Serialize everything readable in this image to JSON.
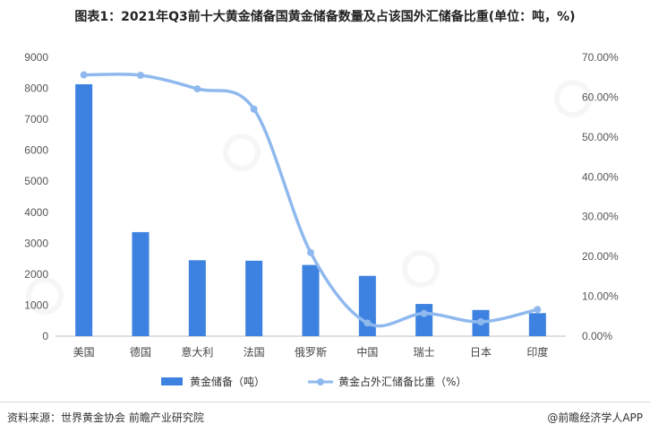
{
  "title": "图表1：2021年Q3前十大黄金储备国黄金储备数量及占该国外汇储备比重(单位：吨，%)",
  "source": "资料来源：世界黄金协会 前瞻产业研究院",
  "credit": "@前瞻经济学人APP",
  "colors": {
    "bar": "#3d82e0",
    "line": "#8fb9ee",
    "grid": "#e6e6e6"
  },
  "chart_data": {
    "type": "bar",
    "categories": [
      "美国",
      "德国",
      "意大利",
      "法国",
      "俄罗斯",
      "中国",
      "瑞士",
      "日本",
      "印度"
    ],
    "series": [
      {
        "name": "黄金储备（吨）",
        "type": "bar",
        "axis": "left",
        "values": [
          8133,
          3359,
          2452,
          2436,
          2299,
          1948,
          1040,
          846,
          744
        ]
      },
      {
        "name": "黄金占外汇储备比重（%）",
        "type": "line",
        "axis": "right",
        "values": [
          65.6,
          65.5,
          62.1,
          57.0,
          21.0,
          3.3,
          5.7,
          3.6,
          6.7
        ]
      }
    ],
    "y_left": {
      "min": 0,
      "max": 9000,
      "ticks": [
        "0",
        "1000",
        "2000",
        "3000",
        "4000",
        "5000",
        "6000",
        "7000",
        "8000",
        "9000"
      ]
    },
    "y_right": {
      "min": 0,
      "max": 70,
      "ticks": [
        "0.00%",
        "10.00%",
        "20.00%",
        "30.00%",
        "40.00%",
        "50.00%",
        "60.00%",
        "70.00%"
      ]
    },
    "grid": false,
    "legend": "bottom"
  }
}
